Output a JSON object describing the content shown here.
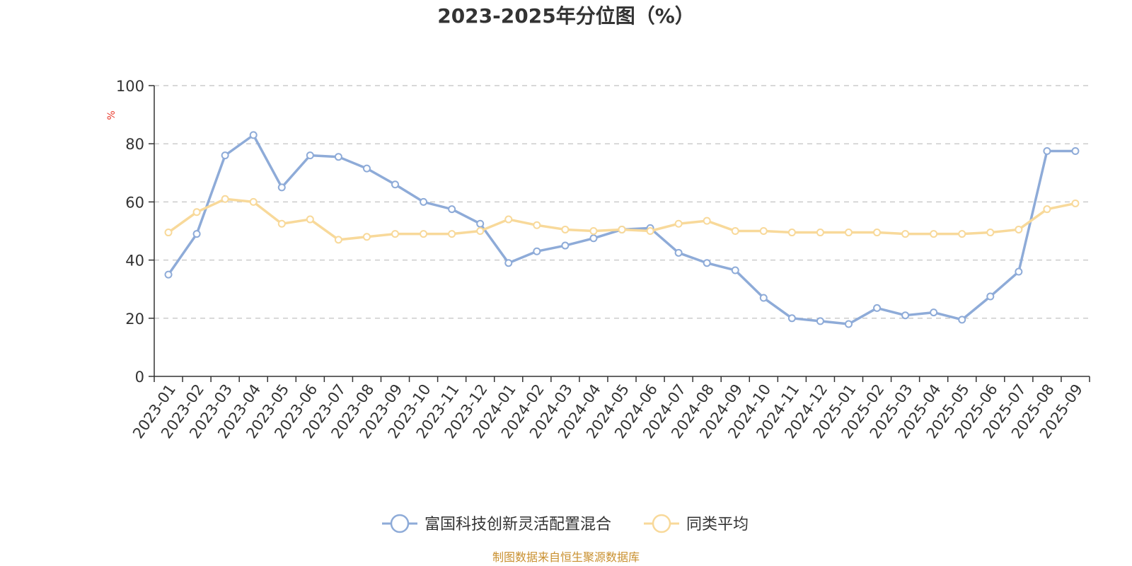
{
  "chart_data": {
    "type": "line",
    "title": "2023-2025年分位图（%）",
    "ylabel": "%",
    "xlabel": "",
    "ylim": [
      0,
      100
    ],
    "yticks": [
      0,
      20,
      40,
      60,
      80,
      100
    ],
    "grid": true,
    "legend_position": "bottom-center",
    "categories": [
      "2023-01",
      "2023-02",
      "2023-03",
      "2023-04",
      "2023-05",
      "2023-06",
      "2023-07",
      "2023-08",
      "2023-09",
      "2023-10",
      "2023-11",
      "2023-12",
      "2024-01",
      "2024-02",
      "2024-03",
      "2024-04",
      "2024-05",
      "2024-06",
      "2024-07",
      "2024-08",
      "2024-09",
      "2024-10",
      "2024-11",
      "2024-12",
      "2025-01",
      "2025-02",
      "2025-03",
      "2025-04",
      "2025-05",
      "2025-06",
      "2025-07",
      "2025-08",
      "2025-09"
    ],
    "series": [
      {
        "name": "富国科技创新灵活配置混合",
        "color": "#8eabd8",
        "values": [
          35,
          49,
          76,
          83,
          65,
          76,
          75.5,
          71.5,
          66,
          60,
          57.5,
          52.5,
          39,
          43,
          45,
          47.5,
          50.5,
          51,
          42.5,
          39,
          36.5,
          27,
          20,
          19,
          18,
          23.5,
          21,
          22,
          19.5,
          27.5,
          36,
          77.5,
          77.5
        ]
      },
      {
        "name": "同类平均",
        "color": "#f8d99a",
        "values": [
          49.5,
          56.5,
          61,
          60,
          52.5,
          54,
          47,
          48,
          49,
          49,
          49,
          50,
          54,
          52,
          50.5,
          50,
          50.5,
          50,
          52.5,
          53.5,
          50,
          50,
          49.5,
          49.5,
          49.5,
          49.5,
          49,
          49,
          49,
          49.5,
          50.5,
          57.5,
          59.5
        ]
      }
    ]
  },
  "source_text": "制图数据来自恒生聚源数据库",
  "colors": {
    "axis": "#333333",
    "grid": "#cccccc",
    "ylabel": "#e83a2d",
    "source": "#c9902f"
  }
}
